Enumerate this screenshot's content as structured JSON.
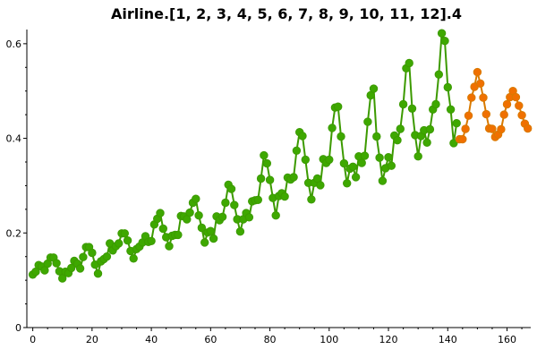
{
  "chart_data": {
    "type": "line",
    "title": "Airline.[1, 2, 3, 4, 5, 6, 7, 8, 9, 10, 11, 12].4",
    "xlabel": "",
    "ylabel": "",
    "xlim": [
      -2,
      168
    ],
    "ylim": [
      0,
      0.63
    ],
    "x_ticks": [
      0,
      20,
      40,
      60,
      80,
      100,
      120,
      140,
      160
    ],
    "y_ticks": [
      0,
      0.2,
      0.4,
      0.6
    ],
    "x_tick_labels": [
      "0",
      "20",
      "40",
      "60",
      "80",
      "100",
      "120",
      "140",
      "160"
    ],
    "y_tick_labels": [
      "0",
      "0.2",
      "0.4",
      "0.6"
    ],
    "grid": false,
    "series": [
      {
        "color": "#3c9a00",
        "marker_fill": "#3ea800",
        "x_start": 0,
        "values": [
          0.112,
          0.118,
          0.132,
          0.129,
          0.121,
          0.135,
          0.148,
          0.148,
          0.136,
          0.119,
          0.104,
          0.118,
          0.115,
          0.126,
          0.141,
          0.135,
          0.125,
          0.149,
          0.17,
          0.17,
          0.158,
          0.133,
          0.114,
          0.14,
          0.145,
          0.15,
          0.178,
          0.163,
          0.172,
          0.178,
          0.199,
          0.199,
          0.184,
          0.162,
          0.146,
          0.166,
          0.171,
          0.18,
          0.193,
          0.181,
          0.183,
          0.218,
          0.23,
          0.242,
          0.209,
          0.191,
          0.172,
          0.194,
          0.196,
          0.196,
          0.236,
          0.235,
          0.229,
          0.243,
          0.264,
          0.272,
          0.237,
          0.211,
          0.18,
          0.201,
          0.204,
          0.188,
          0.235,
          0.227,
          0.234,
          0.264,
          0.302,
          0.293,
          0.259,
          0.229,
          0.203,
          0.229,
          0.242,
          0.233,
          0.267,
          0.269,
          0.27,
          0.315,
          0.364,
          0.347,
          0.312,
          0.274,
          0.237,
          0.278,
          0.284,
          0.277,
          0.317,
          0.313,
          0.318,
          0.374,
          0.413,
          0.405,
          0.355,
          0.306,
          0.271,
          0.306,
          0.315,
          0.301,
          0.356,
          0.348,
          0.355,
          0.422,
          0.465,
          0.467,
          0.404,
          0.347,
          0.305,
          0.336,
          0.34,
          0.318,
          0.362,
          0.348,
          0.363,
          0.435,
          0.491,
          0.505,
          0.404,
          0.359,
          0.31,
          0.337,
          0.36,
          0.342,
          0.406,
          0.396,
          0.42,
          0.472,
          0.548,
          0.559,
          0.463,
          0.407,
          0.362,
          0.405,
          0.417,
          0.391,
          0.419,
          0.461,
          0.472,
          0.535,
          0.622,
          0.606,
          0.508,
          0.461,
          0.39,
          0.432
        ]
      },
      {
        "color": "#d87a00",
        "marker_fill": "#f07000",
        "x_start": 144,
        "values": [
          0.398,
          0.398,
          0.42,
          0.448,
          0.486,
          0.509,
          0.54,
          0.516,
          0.486,
          0.451,
          0.421,
          0.42,
          0.403,
          0.408,
          0.419,
          0.45,
          0.472,
          0.487,
          0.5,
          0.487,
          0.469,
          0.449,
          0.431,
          0.421
        ]
      }
    ]
  }
}
